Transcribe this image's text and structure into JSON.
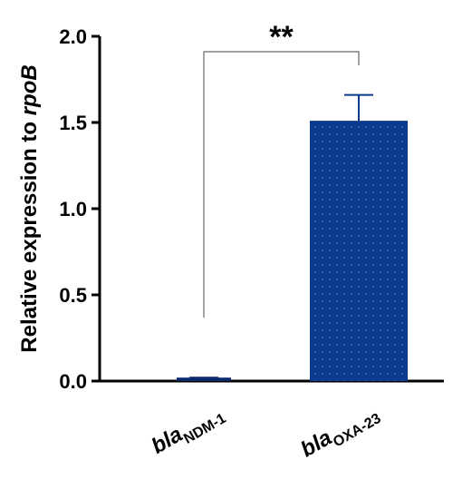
{
  "chart_data": {
    "type": "bar",
    "ylabel": {
      "text": "Relative expression to ",
      "gene": "rpoB"
    },
    "categories": [
      {
        "gene": "bla",
        "variant": "NDM-1"
      },
      {
        "gene": "bla",
        "variant": "OXA-23"
      }
    ],
    "values": [
      0.02,
      1.51
    ],
    "errors": [
      0,
      0.15
    ],
    "colors": [
      "#0b2a6e",
      "#0b3a8f"
    ],
    "ylim": [
      0,
      2.0
    ],
    "yticks": [
      {
        "value": 0,
        "label": "0.0"
      },
      {
        "value": 0.5,
        "label": "0.5"
      },
      {
        "value": 1.0,
        "label": "1.0"
      },
      {
        "value": 1.5,
        "label": "1.5"
      },
      {
        "value": 2.0,
        "label": "2.0"
      }
    ],
    "significance": {
      "label": "**",
      "between": [
        0,
        1
      ]
    }
  }
}
